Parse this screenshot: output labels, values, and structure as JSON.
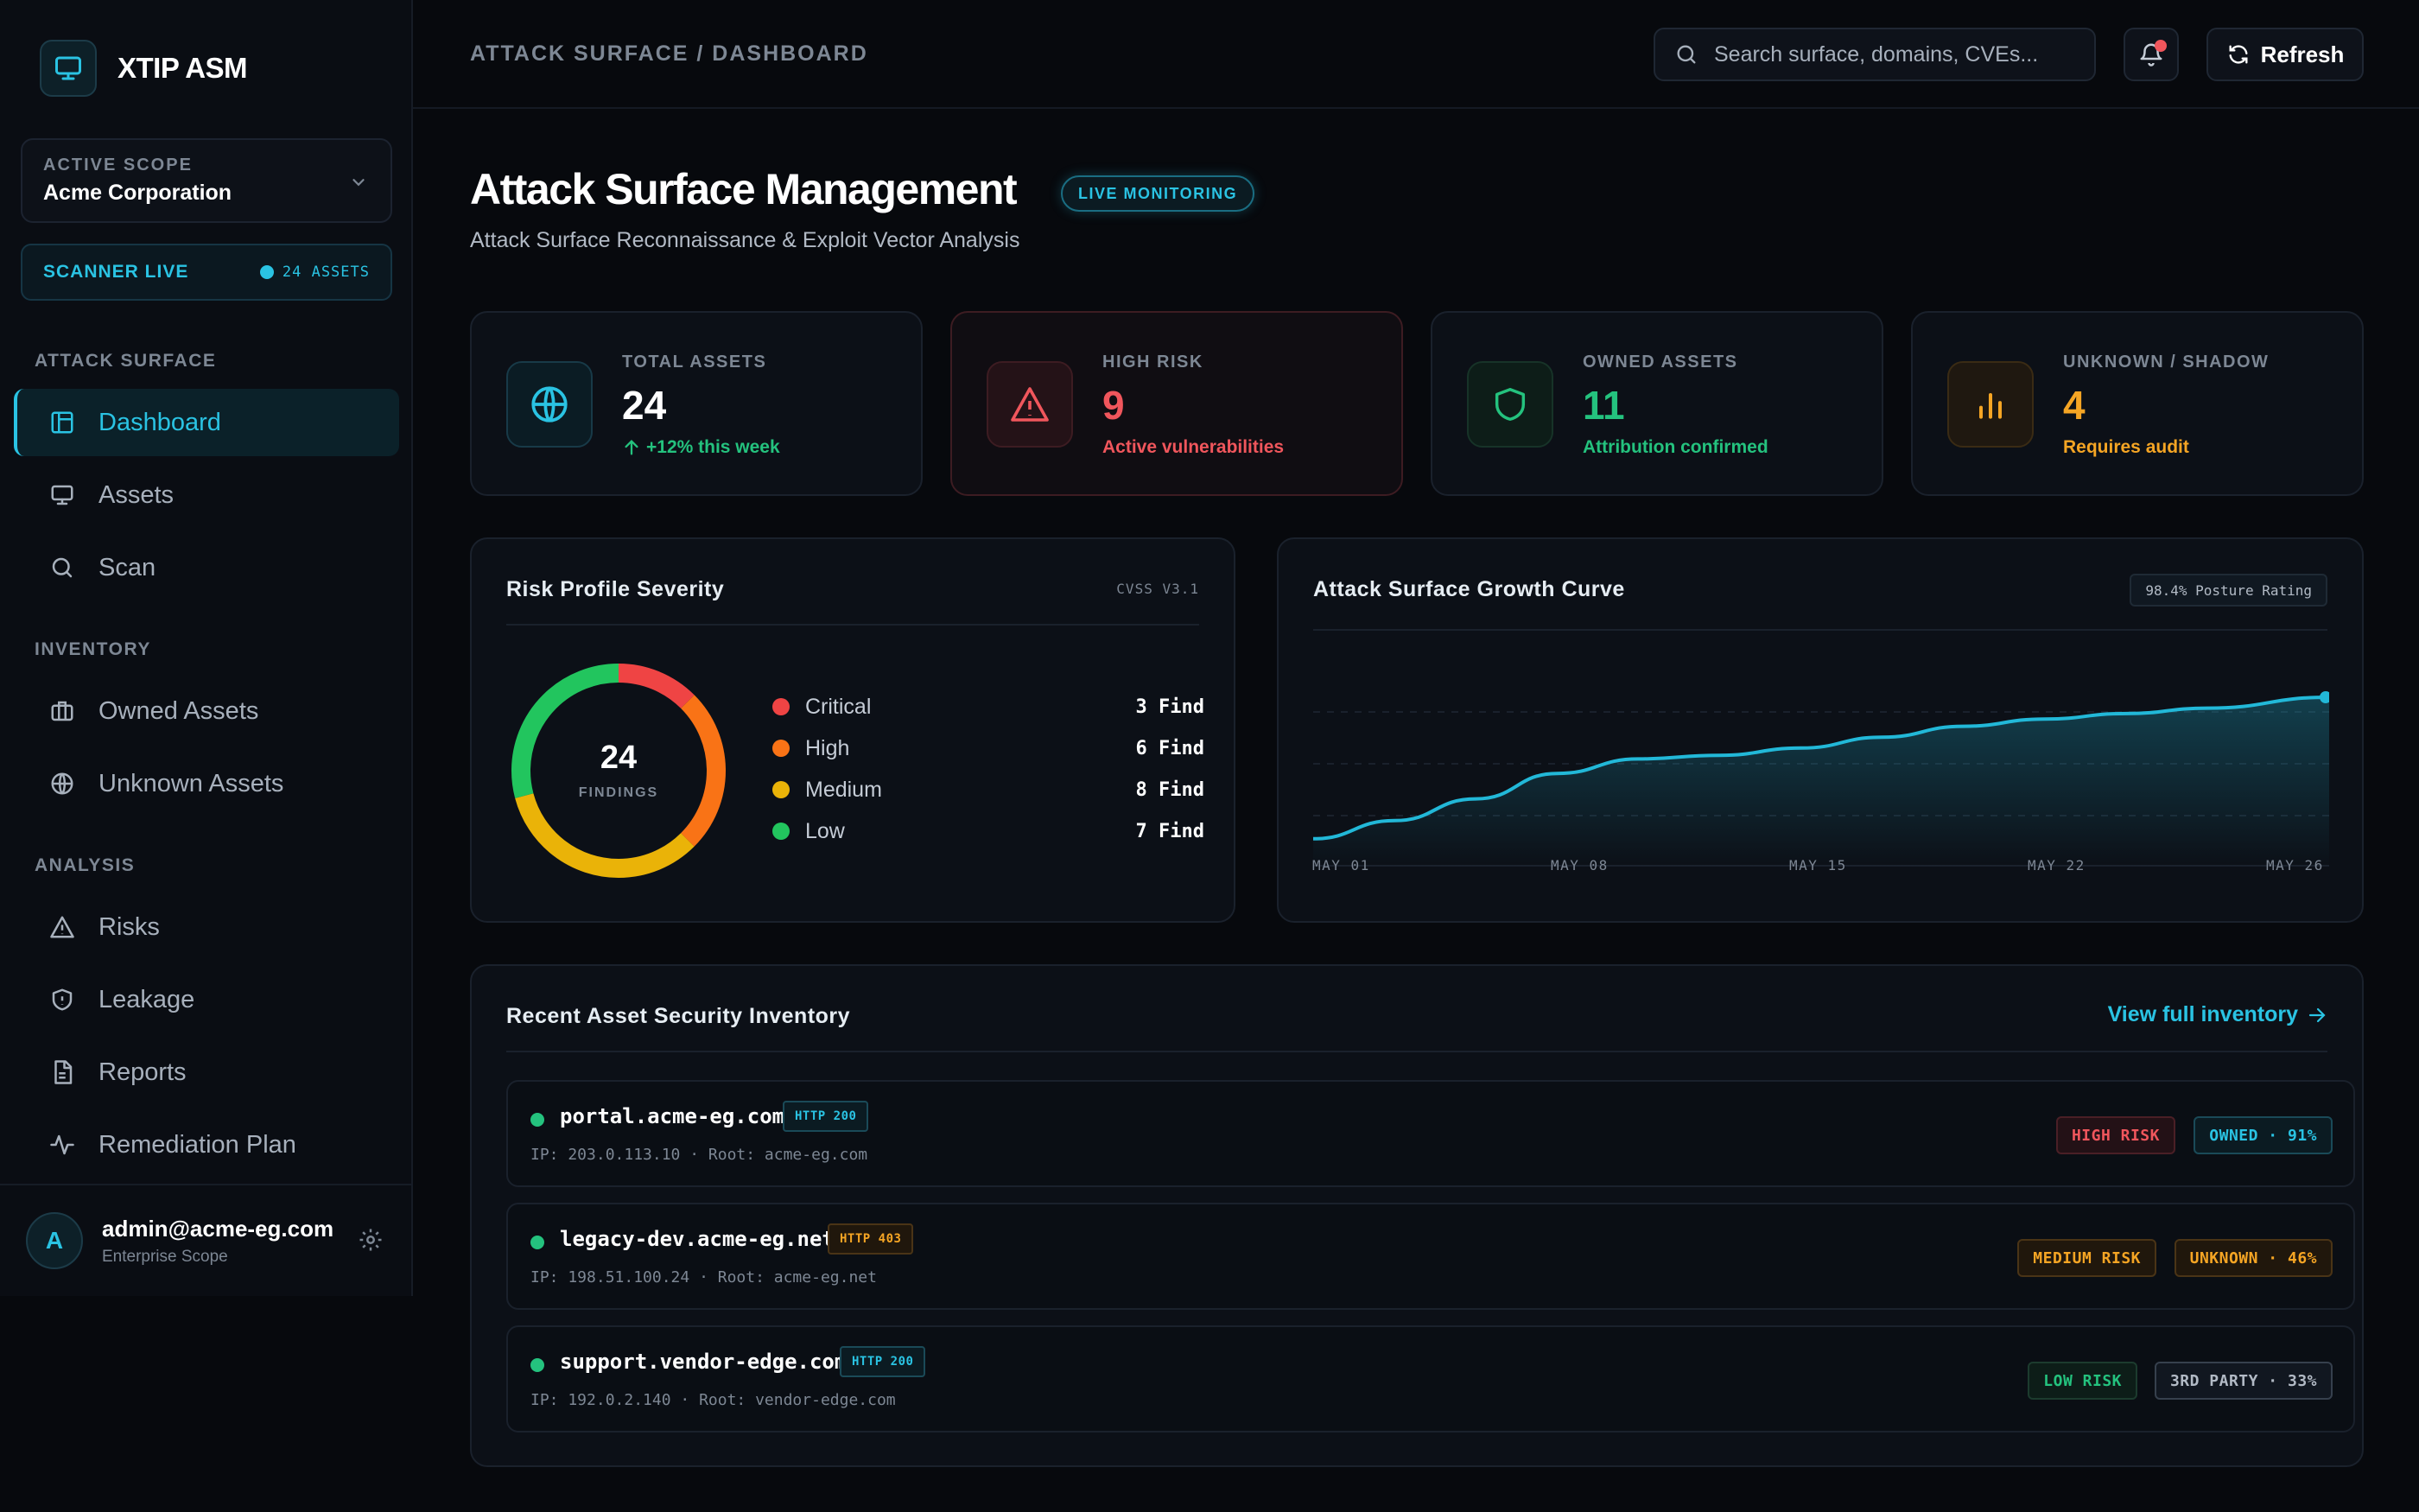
{
  "app": {
    "name": "XTIP ASM"
  },
  "scope": {
    "label": "ACTIVE SCOPE",
    "value": "Acme Corporation"
  },
  "scanner": {
    "label": "SCANNER LIVE",
    "count": "24 ASSETS"
  },
  "nav": {
    "sections": [
      {
        "title": "ATTACK SURFACE",
        "items": [
          "Dashboard",
          "Assets",
          "Scan"
        ]
      },
      {
        "title": "INVENTORY",
        "items": [
          "Owned Assets",
          "Unknown Assets"
        ]
      },
      {
        "title": "ANALYSIS",
        "items": [
          "Risks",
          "Leakage",
          "Reports",
          "Remediation Plan"
        ]
      }
    ],
    "active": "Dashboard"
  },
  "user": {
    "initial": "A",
    "email": "admin@acme-eg.com",
    "scope": "Enterprise Scope"
  },
  "topbar": {
    "breadcrumb": "ATTACK SURFACE / DASHBOARD",
    "search_placeholder": "Search surface, domains, CVEs...",
    "refresh_label": "Refresh"
  },
  "header": {
    "title": "Attack Surface Management",
    "badge": "LIVE MONITORING",
    "subtitle": "Attack Surface Reconnaissance & Exploit Vector Analysis"
  },
  "kpis": [
    {
      "label": "TOTAL ASSETS",
      "value": "24",
      "sub": "+12% this week",
      "color": "#ffffff",
      "sub_color": "#24c27e",
      "icon": "globe-icon"
    },
    {
      "label": "HIGH RISK",
      "value": "9",
      "sub": "Active vulnerabilities",
      "color": "#f0565c",
      "sub_color": "#f0565c",
      "icon": "warning-icon"
    },
    {
      "label": "OWNED ASSETS",
      "value": "11",
      "sub": "Attribution confirmed",
      "color": "#24c27e",
      "sub_color": "#24c27e",
      "icon": "shield-icon"
    },
    {
      "label": "UNKNOWN / SHADOW",
      "value": "4",
      "sub": "Requires audit",
      "color": "#f5a524",
      "sub_color": "#f5a524",
      "icon": "bar-chart-icon"
    }
  ],
  "risk_panel": {
    "title": "Risk Profile Severity",
    "tag": "CVSS V3.1",
    "total": "24",
    "total_label": "FINDINGS",
    "legend": [
      {
        "name": "Critical",
        "count": "3 Find",
        "value": 3,
        "color": "#ef4444"
      },
      {
        "name": "High",
        "count": "6 Find",
        "value": 6,
        "color": "#f97316"
      },
      {
        "name": "Medium",
        "count": "8 Find",
        "value": 8,
        "color": "#eab308"
      },
      {
        "name": "Low",
        "count": "7 Find",
        "value": 7,
        "color": "#22c55e"
      }
    ]
  },
  "growth_panel": {
    "title": "Attack Surface Growth Curve",
    "badge": "98.4% Posture Rating",
    "accent": "#22b8d8"
  },
  "chart_data": {
    "type": "area",
    "title": "Attack Surface Growth Curve",
    "x_ticks": [
      "MAY 01",
      "MAY 08",
      "MAY 15",
      "MAY 22",
      "MAY 26"
    ],
    "x": [
      0,
      0.08,
      0.16,
      0.24,
      0.32,
      0.4,
      0.48,
      0.56,
      0.64,
      0.72,
      0.8,
      0.88,
      1.0
    ],
    "y": [
      0.12,
      0.22,
      0.34,
      0.48,
      0.56,
      0.58,
      0.62,
      0.68,
      0.74,
      0.78,
      0.81,
      0.84,
      0.9
    ],
    "ylim": [
      0,
      1
    ],
    "grid": true
  },
  "inventory": {
    "title": "Recent Asset Security Inventory",
    "view_link": "View full inventory",
    "rows": [
      {
        "host": "portal.acme-eg.com",
        "http": "HTTP 200",
        "meta": "IP: 203.0.113.10 · Root: acme-eg.com",
        "risk": "HIGH RISK",
        "owner": "OWNED · 91%"
      },
      {
        "host": "legacy-dev.acme-eg.net",
        "http": "HTTP 403",
        "meta": "IP: 198.51.100.24 · Root: acme-eg.net",
        "risk": "MEDIUM RISK",
        "owner": "UNKNOWN · 46%"
      },
      {
        "host": "support.vendor-edge.com",
        "http": "HTTP 200",
        "meta": "IP: 192.0.2.140 · Root: vendor-edge.com",
        "risk": "LOW RISK",
        "owner": "3RD PARTY · 33%"
      }
    ]
  }
}
